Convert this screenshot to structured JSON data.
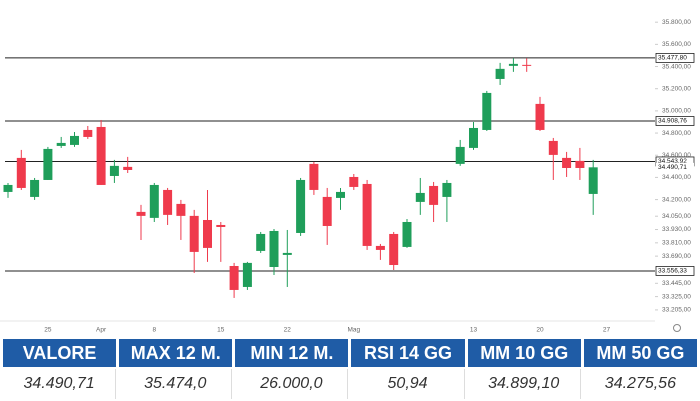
{
  "chart_data": {
    "type": "candlestick",
    "categories": [
      null,
      null,
      null,
      "25",
      null,
      null,
      null,
      "Apr",
      null,
      null,
      null,
      "8",
      null,
      null,
      null,
      null,
      "15",
      null,
      null,
      null,
      null,
      "22",
      null,
      null,
      null,
      null,
      "Mag",
      null,
      null,
      null,
      null,
      null,
      null,
      null,
      null,
      "13",
      null,
      null,
      null,
      null,
      "20",
      null,
      null,
      null,
      null,
      "27"
    ],
    "open": [
      34269,
      34576,
      34224,
      34377,
      34684,
      34693,
      34828,
      34855,
      34413,
      34495,
      34089,
      34035,
      34287,
      34161,
      34053,
      34016,
      33971,
      33601,
      33412,
      33737,
      33592,
      33701,
      33899,
      34522,
      34224,
      34215,
      34404,
      34341,
      33782,
      33890,
      33773,
      34179,
      34323,
      34224,
      34522,
      34666,
      34828,
      35288,
      35406,
      35415,
      35063,
      34729,
      34576,
      34549,
      34251,
      null
    ],
    "high": [
      34350,
      34648,
      34395,
      34675,
      34765,
      34810,
      34864,
      34918,
      34558,
      34585,
      34152,
      34350,
      34305,
      34197,
      34107,
      34287,
      33998,
      33629,
      33638,
      33908,
      33935,
      33926,
      34395,
      34540,
      34305,
      34305,
      34431,
      34377,
      33800,
      33908,
      34025,
      34395,
      34359,
      34377,
      34738,
      34900,
      35180,
      35433,
      35474,
      35474,
      35126,
      34756,
      34630,
      34666,
      34558,
      null
    ],
    "low": [
      34215,
      34287,
      34197,
      34377,
      34666,
      34675,
      34747,
      34332,
      34350,
      34440,
      33836,
      33998,
      33971,
      33836,
      33538,
      33638,
      33638,
      33313,
      33385,
      33719,
      33520,
      33412,
      33872,
      34242,
      33791,
      34107,
      34287,
      33746,
      33656,
      33565,
      33764,
      34062,
      33998,
      33998,
      34504,
      34648,
      34819,
      35234,
      35352,
      35352,
      34819,
      34377,
      34404,
      34377,
      34062,
      null
    ],
    "close": [
      34332,
      34305,
      34377,
      34657,
      34711,
      34774,
      34765,
      34332,
      34504,
      34467,
      34053,
      34332,
      34062,
      34053,
      33728,
      33764,
      33953,
      33385,
      33629,
      33890,
      33917,
      33719,
      34377,
      34287,
      33962,
      34269,
      34314,
      33782,
      33746,
      33610,
      33998,
      34260,
      34152,
      34350,
      34675,
      34846,
      35162,
      35379,
      35424,
      35406,
      34828,
      34603,
      34485,
      34485,
      34491,
      null
    ],
    "up_color": "#1f9e5a",
    "down_color": "#ef3a4c",
    "ylim": [
      33114,
      35955
    ],
    "yticks": [
      {
        "value": 35800,
        "label": "35.800,00"
      },
      {
        "value": 35600,
        "label": "35.600,00"
      },
      {
        "value": 35400,
        "label": "35.400,00"
      },
      {
        "value": 35200,
        "label": "35.200,00"
      },
      {
        "value": 35000,
        "label": "35.000,00"
      },
      {
        "value": 34800,
        "label": "34.800,00"
      },
      {
        "value": 34600,
        "label": "34.600,00"
      },
      {
        "value": 34400,
        "label": "34.400,00"
      },
      {
        "value": 34200,
        "label": "34.200,00"
      },
      {
        "value": 34050,
        "label": "34.050,00"
      },
      {
        "value": 33930,
        "label": "33.930,00"
      },
      {
        "value": 33810,
        "label": "33.810,00"
      },
      {
        "value": 33690,
        "label": "33.690,00"
      },
      {
        "value": 33445,
        "label": "33.445,00"
      },
      {
        "value": 33325,
        "label": "33.325,00"
      },
      {
        "value": 33205,
        "label": "33.205,00"
      }
    ],
    "levels": [
      {
        "value": 35477.8,
        "label": "35.477,80"
      },
      {
        "value": 34908.76,
        "label": "34.908,76"
      },
      {
        "value": 34543.92,
        "label": "34.543,92"
      },
      {
        "value": 33556.33,
        "label": "33.556,33"
      }
    ],
    "price_tag": {
      "value": 34490.71,
      "label": "34.490,71"
    }
  },
  "table": {
    "headers": [
      "VALORE",
      "MAX 12 M.",
      "MIN 12 M.",
      "RSI 14 GG",
      "MM 10 GG",
      "MM 50 GG"
    ],
    "rows": [
      [
        "34.490,71",
        "35.474,0",
        "26.000,0",
        "50,94",
        "34.899,10",
        "34.275,56"
      ]
    ]
  }
}
